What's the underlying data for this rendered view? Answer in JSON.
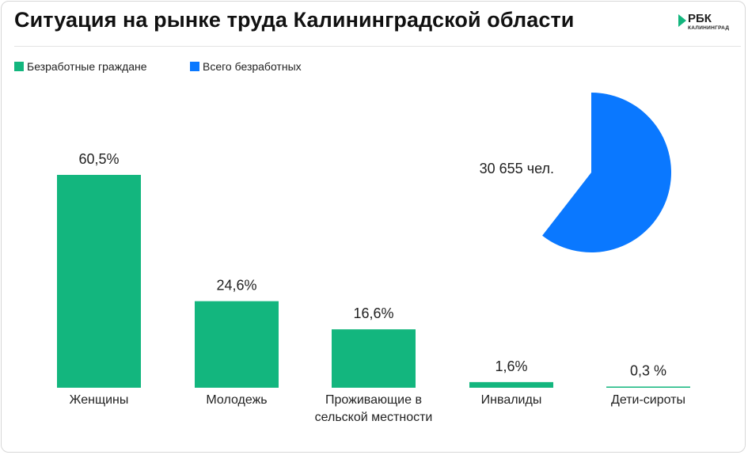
{
  "header": {
    "title": "Ситуация на рынке труда Калининградской области",
    "logo_main": "РБК",
    "logo_sub": "КАЛИНИНГРАД"
  },
  "colors": {
    "bars": "#13b67e",
    "pie": "#0a78ff"
  },
  "chart_data": {
    "type": "bar",
    "title": "Ситуация на рынке труда Калининградской области",
    "legend": [
      "Безработные граждане",
      "Всего безработных"
    ],
    "categories": [
      [
        "Женщины"
      ],
      [
        "Молодежь"
      ],
      [
        "Проживающие в",
        "сельской местности"
      ],
      [
        "Инвалиды"
      ],
      [
        "Дети-сироты"
      ]
    ],
    "values": [
      60.5,
      24.6,
      16.6,
      1.6,
      0.3
    ],
    "value_labels": [
      "60,5%",
      "24,6%",
      "16,6%",
      "1,6%",
      "0,3 %"
    ],
    "ylim": [
      0,
      60.5
    ],
    "total": {
      "type": "pie",
      "label": "30 655 чел.",
      "share_percent": 60.5
    }
  }
}
